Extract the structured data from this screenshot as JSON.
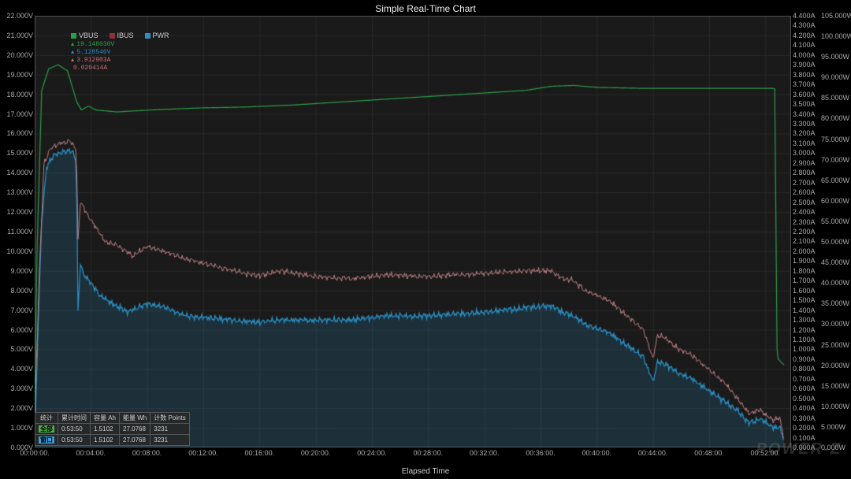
{
  "title": "Simple Real-Time Chart",
  "x_axis_title": "Elapsed Time",
  "watermark": "POWER-Z",
  "background_color": "#000000",
  "plot_background": "#1a1a1a",
  "grid_color": "#3a3a3a",
  "tick_font_size": 9,
  "tick_color": "#aaaaaa",
  "legend": {
    "items": [
      {
        "swatch": "#2aa04a",
        "label": "VBUS"
      },
      {
        "swatch": "#8b3234",
        "label": "IBUS"
      },
      {
        "swatch": "#2a8fc4",
        "label": "PWR"
      }
    ]
  },
  "readouts": [
    {
      "tri": "▲",
      "tri_color": "#2aa04a",
      "text": "19.148030V",
      "text_color": "#2aa04a"
    },
    {
      "tri": "▲",
      "tri_color": "#2a8fc4",
      "text": "5.128546V",
      "text_color": "#2a8fc4"
    },
    {
      "tri": "▲",
      "tri_color": "#c76d70",
      "text": "3.912903A",
      "text_color": "#c76d70"
    },
    {
      "tri": "",
      "tri_color": "#c76d70",
      "text": "0.020414A",
      "text_color": "#c76d70"
    }
  ],
  "stats": {
    "headers": [
      "统计",
      "累计时间",
      "容量 Ah",
      "能量 Wh",
      "计数 Points"
    ],
    "rows": [
      {
        "tag": "全部",
        "tag_bg": "#4db04d",
        "cells": [
          "0:53:50",
          "1.5102",
          "27.0768",
          "3231"
        ]
      },
      {
        "tag": "窗口",
        "tag_bg": "#3a9fd8",
        "cells": [
          "0:53:50",
          "1.5102",
          "27.0768",
          "3231"
        ]
      }
    ]
  },
  "axis_left": {
    "unit": "V",
    "min": 0,
    "max": 22,
    "step": 1,
    "labels": [
      "0.000V",
      "1.000V",
      "2.000V",
      "3.000V",
      "4.000V",
      "5.000V",
      "6.000V",
      "7.000V",
      "8.000V",
      "9.000V",
      "10.000V",
      "11.000V",
      "12.000V",
      "13.000V",
      "14.000V",
      "15.000V",
      "16.000V",
      "17.000V",
      "18.000V",
      "19.000V",
      "20.000V",
      "21.000V",
      "22.000V"
    ]
  },
  "axis_right1": {
    "unit": "A",
    "min": 0,
    "max": 4.4,
    "step": 0.1,
    "labels": [
      "0.000A",
      "0.100A",
      "0.200A",
      "0.300A",
      "0.400A",
      "0.500A",
      "0.600A",
      "0.700A",
      "0.800A",
      "0.900A",
      "1.000A",
      "1.100A",
      "1.200A",
      "1.300A",
      "1.400A",
      "1.500A",
      "1.600A",
      "1.700A",
      "1.800A",
      "1.900A",
      "2.000A",
      "2.100A",
      "2.200A",
      "2.300A",
      "2.400A",
      "2.500A",
      "2.600A",
      "2.700A",
      "2.800A",
      "2.900A",
      "3.000A",
      "3.100A",
      "3.200A",
      "3.300A",
      "3.400A",
      "3.500A",
      "3.600A",
      "3.700A",
      "3.800A",
      "3.900A",
      "4.000A",
      "4.100A",
      "4.200A",
      "4.300A",
      "4.400A"
    ]
  },
  "axis_right2": {
    "unit": "W",
    "min": 0,
    "max": 105,
    "step": 5,
    "labels": [
      "0.000W",
      "5.000W",
      "10.000W",
      "15.000W",
      "20.000W",
      "25.000W",
      "30.000W",
      "35.000W",
      "40.000W",
      "45.000W",
      "50.000W",
      "55.000W",
      "60.000W",
      "65.000W",
      "70.000W",
      "75.000W",
      "80.000W",
      "85.000W",
      "90.000W",
      "95.000W",
      "100.000W",
      "105.000W"
    ]
  },
  "axis_bottom": {
    "min_sec": 0,
    "max_sec": 3230,
    "major_step_sec": 240,
    "labels": [
      "00:00:00.",
      "00:04:00.",
      "00:08:00.",
      "00:12:00.",
      "00:16:00.",
      "00:20:00.",
      "00:24:00.",
      "00:28:00.",
      "00:32:00.",
      "00:36:00.",
      "00:40:00.",
      "00:44:00.",
      "00:48:00.",
      "00:52:00."
    ]
  },
  "series": {
    "vbus": {
      "color": "#2aa04a",
      "line_width": 1.2,
      "fill": false,
      "axis": "left",
      "points": [
        [
          0,
          2
        ],
        [
          10,
          10
        ],
        [
          30,
          18.2
        ],
        [
          60,
          19.3
        ],
        [
          100,
          19.5
        ],
        [
          140,
          19.2
        ],
        [
          180,
          17.6
        ],
        [
          200,
          17.2
        ],
        [
          230,
          17.4
        ],
        [
          260,
          17.2
        ],
        [
          350,
          17.1
        ],
        [
          500,
          17.2
        ],
        [
          700,
          17.3
        ],
        [
          900,
          17.35
        ],
        [
          1100,
          17.45
        ],
        [
          1300,
          17.6
        ],
        [
          1500,
          17.75
        ],
        [
          1700,
          17.9
        ],
        [
          1900,
          18.05
        ],
        [
          2100,
          18.2
        ],
        [
          2200,
          18.4
        ],
        [
          2300,
          18.45
        ],
        [
          2400,
          18.35
        ],
        [
          2600,
          18.3
        ],
        [
          2800,
          18.3
        ],
        [
          3000,
          18.3
        ],
        [
          3150,
          18.3
        ],
        [
          3160,
          18.28
        ],
        [
          3170,
          5
        ],
        [
          3175,
          4.5
        ],
        [
          3200,
          4.2
        ]
      ]
    },
    "ibus": {
      "color": "#c08285",
      "line_width": 1,
      "fill": false,
      "axis": "right1",
      "noise": 0.05,
      "points": [
        [
          0,
          0.3
        ],
        [
          20,
          1.8
        ],
        [
          40,
          2.9
        ],
        [
          70,
          3.05
        ],
        [
          110,
          3.1
        ],
        [
          150,
          3.12
        ],
        [
          175,
          3.05
        ],
        [
          180,
          2.8
        ],
        [
          185,
          2.1
        ],
        [
          195,
          2.5
        ],
        [
          210,
          2.45
        ],
        [
          230,
          2.35
        ],
        [
          260,
          2.25
        ],
        [
          300,
          2.1
        ],
        [
          360,
          2.05
        ],
        [
          420,
          1.95
        ],
        [
          480,
          2.05
        ],
        [
          550,
          2.0
        ],
        [
          650,
          1.92
        ],
        [
          750,
          1.86
        ],
        [
          850,
          1.8
        ],
        [
          950,
          1.75
        ],
        [
          1050,
          1.8
        ],
        [
          1200,
          1.74
        ],
        [
          1350,
          1.72
        ],
        [
          1500,
          1.76
        ],
        [
          1650,
          1.74
        ],
        [
          1800,
          1.76
        ],
        [
          1950,
          1.78
        ],
        [
          2100,
          1.8
        ],
        [
          2200,
          1.8
        ],
        [
          2260,
          1.72
        ],
        [
          2300,
          1.7
        ],
        [
          2350,
          1.6
        ],
        [
          2400,
          1.55
        ],
        [
          2450,
          1.5
        ],
        [
          2500,
          1.4
        ],
        [
          2550,
          1.3
        ],
        [
          2600,
          1.2
        ],
        [
          2640,
          0.9
        ],
        [
          2660,
          1.15
        ],
        [
          2700,
          1.1
        ],
        [
          2750,
          1.0
        ],
        [
          2800,
          0.95
        ],
        [
          2850,
          0.85
        ],
        [
          2900,
          0.75
        ],
        [
          2950,
          0.65
        ],
        [
          3000,
          0.5
        ],
        [
          3050,
          0.35
        ],
        [
          3100,
          0.38
        ],
        [
          3150,
          0.28
        ],
        [
          3180,
          0.3
        ],
        [
          3200,
          0.1
        ]
      ]
    },
    "pwr": {
      "color": "#2a8fc4",
      "fill_color": "rgba(42,143,196,0.18)",
      "line_width": 1.3,
      "fill": true,
      "axis": "right2",
      "noise": 1.2,
      "points": [
        [
          0,
          2
        ],
        [
          15,
          30
        ],
        [
          30,
          55
        ],
        [
          50,
          68
        ],
        [
          80,
          71
        ],
        [
          120,
          72
        ],
        [
          160,
          72
        ],
        [
          175,
          70
        ],
        [
          180,
          60
        ],
        [
          185,
          33
        ],
        [
          195,
          45
        ],
        [
          210,
          42
        ],
        [
          240,
          40
        ],
        [
          280,
          37
        ],
        [
          330,
          35
        ],
        [
          400,
          33
        ],
        [
          480,
          35
        ],
        [
          560,
          34
        ],
        [
          650,
          32
        ],
        [
          750,
          31.5
        ],
        [
          850,
          31
        ],
        [
          950,
          30.5
        ],
        [
          1050,
          31
        ],
        [
          1200,
          31
        ],
        [
          1350,
          31
        ],
        [
          1500,
          32
        ],
        [
          1650,
          32
        ],
        [
          1800,
          32.5
        ],
        [
          1950,
          33
        ],
        [
          2100,
          34
        ],
        [
          2200,
          34.5
        ],
        [
          2250,
          33
        ],
        [
          2300,
          32
        ],
        [
          2350,
          30
        ],
        [
          2400,
          29
        ],
        [
          2450,
          28
        ],
        [
          2500,
          26
        ],
        [
          2550,
          24
        ],
        [
          2600,
          22
        ],
        [
          2640,
          16
        ],
        [
          2660,
          21
        ],
        [
          2700,
          20
        ],
        [
          2750,
          18
        ],
        [
          2800,
          17
        ],
        [
          2850,
          15
        ],
        [
          2900,
          13
        ],
        [
          2950,
          11
        ],
        [
          3000,
          9
        ],
        [
          3050,
          6
        ],
        [
          3100,
          7
        ],
        [
          3150,
          5
        ],
        [
          3180,
          5
        ],
        [
          3200,
          2
        ]
      ]
    }
  }
}
